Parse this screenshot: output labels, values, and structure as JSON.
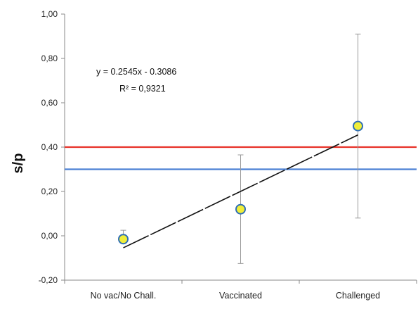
{
  "chart_data": {
    "type": "scatter",
    "ylabel": "s/p",
    "xlabel": "",
    "ylim": [
      -0.2,
      1.0
    ],
    "yticks": [
      "-0,20",
      "0,00",
      "0,20",
      "0,40",
      "0,60",
      "0,80",
      "1,00"
    ],
    "ytick_values": [
      -0.2,
      0.0,
      0.2,
      0.4,
      0.6,
      0.8,
      1.0
    ],
    "categories": [
      "No vac/No Chall.",
      "Vaccinated",
      "Challenged"
    ],
    "grid": false,
    "series": [
      {
        "values": [
          -0.015,
          0.12,
          0.495
        ],
        "error_low": [
          -0.015,
          -0.125,
          0.08
        ],
        "error_high": [
          0.025,
          0.365,
          0.91
        ],
        "marker_color": "#f0ee3a",
        "marker_edge": "#2f6fb5"
      }
    ],
    "trendline": {
      "slope": 0.2545,
      "intercept": -0.3086,
      "equation": "y = 0.2545x - 0.3086",
      "r2": "R² = 0,9321",
      "color": "#111111"
    },
    "reference_lines": [
      {
        "value": 0.4,
        "color": "#e8332a"
      },
      {
        "value": 0.3,
        "color": "#4a7fd4"
      }
    ]
  }
}
